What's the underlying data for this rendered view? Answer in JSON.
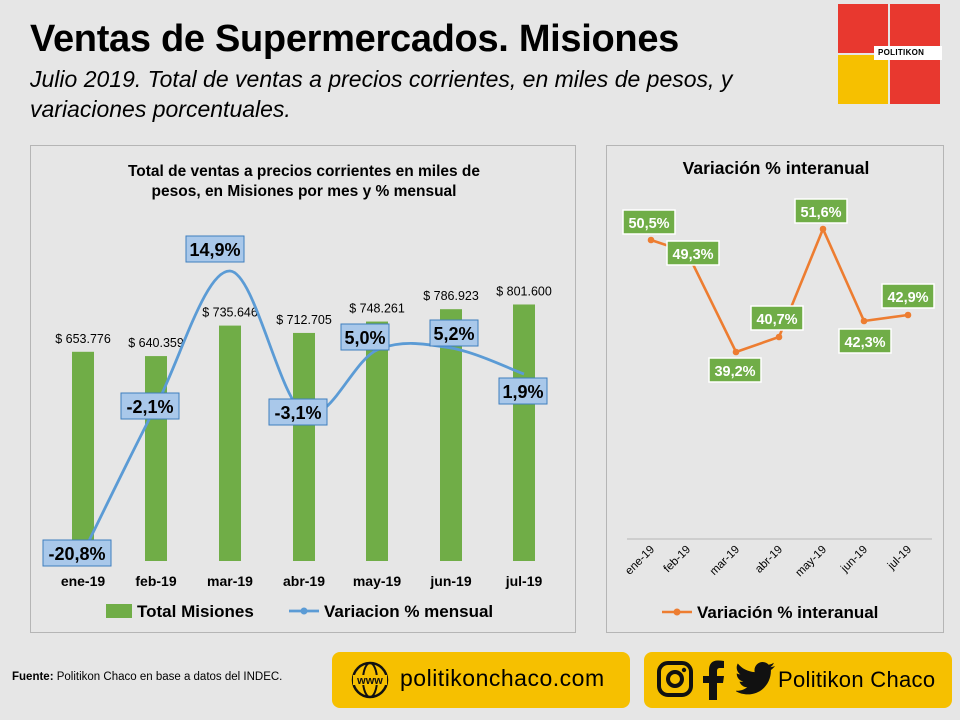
{
  "header": {
    "title": "Ventas de Supermercados. Misiones",
    "subtitle": "Julio 2019. Total de ventas a precios corrientes, en miles de pesos, y variaciones porcentuales.",
    "logo_text": "POLITIKON"
  },
  "colors": {
    "bar": "#70ad47",
    "line_mensual": "#5b9bd5",
    "line_interanual": "#ed7d31",
    "label_blue_fill": "#a9c8ea",
    "label_green_fill": "#70ad47",
    "accent_yellow": "#f6c000",
    "accent_red": "#e8382f"
  },
  "chart_data": [
    {
      "type": "bar",
      "title": "Total de ventas a precios corrientes en miles de pesos, en Misiones por mes y % mensual",
      "categories": [
        "ene-19",
        "feb-19",
        "mar-19",
        "abr-19",
        "may-19",
        "jun-19",
        "jul-19"
      ],
      "series": [
        {
          "name": "Total Misiones",
          "type": "bar",
          "values": [
            653776,
            640359,
            735646,
            712705,
            748261,
            786923,
            801600
          ],
          "labels": [
            "$ 653.776",
            "$ 640.359",
            "$ 735.646",
            "$ 712.705",
            "$ 748.261",
            "$ 786.923",
            "$ 801.600"
          ]
        },
        {
          "name": "Variacion % mensual",
          "type": "line",
          "values": [
            -20.8,
            -2.1,
            14.9,
            -3.1,
            5.0,
            5.2,
            1.9
          ],
          "labels": [
            "-20,8%",
            "-2,1%",
            "14,9%",
            "-3,1%",
            "5,0%",
            "5,2%",
            "1,9%"
          ]
        }
      ],
      "legend_position": "bottom",
      "grid": false
    },
    {
      "type": "line",
      "title": "Variación % interanual",
      "categories": [
        "ene-19",
        "feb-19",
        "mar-19",
        "abr-19",
        "may-19",
        "jun-19",
        "jul-19"
      ],
      "series": [
        {
          "name": "Variación % interanual",
          "values": [
            50.5,
            49.3,
            39.2,
            40.7,
            51.6,
            42.3,
            42.9
          ],
          "labels": [
            "50,5%",
            "49,3%",
            "39,2%",
            "40,7%",
            "51,6%",
            "42,3%",
            "42,9%"
          ]
        }
      ],
      "legend_position": "bottom",
      "grid": false
    }
  ],
  "footer": {
    "source_label": "Fuente:",
    "source_text": " Politikon Chaco en base a datos del INDEC.",
    "www_label": "www",
    "website": "politikonchaco.com",
    "handle": "Politikon Chaco",
    "icons": [
      "globe-icon",
      "instagram-icon",
      "facebook-icon",
      "twitter-icon"
    ]
  }
}
